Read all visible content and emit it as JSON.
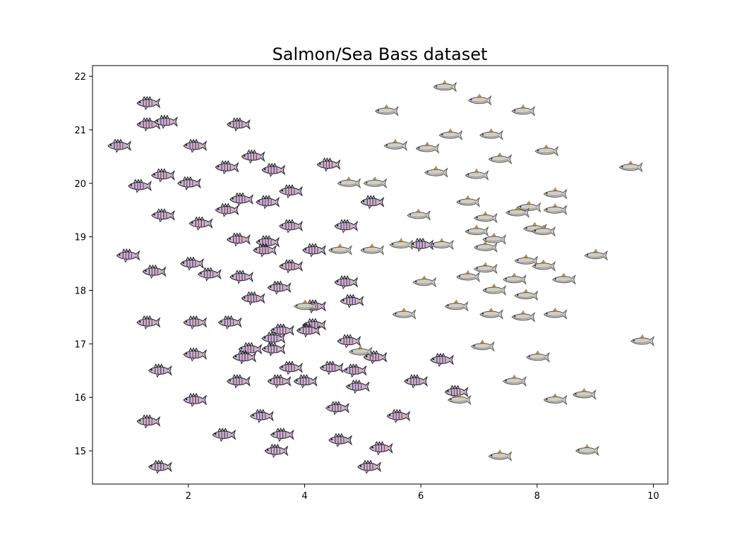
{
  "chart_data": {
    "type": "scatter",
    "title": "Salmon/Sea Bass dataset",
    "xlabel": "",
    "ylabel": "",
    "xlim": [
      0.35,
      10.25
    ],
    "ylim": [
      14.38,
      22.2
    ],
    "xticks": [
      "2",
      "4",
      "6",
      "8",
      "10"
    ],
    "yticks": [
      "15",
      "16",
      "17",
      "18",
      "19",
      "20",
      "21",
      "22"
    ],
    "grid": false,
    "marker_style": "fish pictograms",
    "series": [
      {
        "marker": "sea-bass",
        "color": "#6a5a78",
        "points": [
          [
            1.3,
            21.5
          ],
          [
            1.3,
            21.1
          ],
          [
            1.6,
            21.15
          ],
          [
            2.85,
            21.1
          ],
          [
            0.8,
            20.7
          ],
          [
            2.1,
            20.7
          ],
          [
            3.1,
            20.5
          ],
          [
            2.65,
            20.3
          ],
          [
            3.45,
            20.25
          ],
          [
            4.4,
            20.35
          ],
          [
            1.55,
            20.15
          ],
          [
            1.15,
            19.95
          ],
          [
            2.0,
            20.0
          ],
          [
            2.9,
            19.7
          ],
          [
            3.75,
            19.85
          ],
          [
            3.35,
            19.65
          ],
          [
            5.15,
            19.65
          ],
          [
            2.65,
            19.5
          ],
          [
            1.55,
            19.4
          ],
          [
            2.2,
            19.25
          ],
          [
            3.75,
            19.2
          ],
          [
            4.7,
            19.2
          ],
          [
            2.85,
            18.95
          ],
          [
            3.35,
            18.9
          ],
          [
            0.95,
            18.65
          ],
          [
            3.3,
            18.75
          ],
          [
            4.15,
            18.75
          ],
          [
            6.0,
            18.85
          ],
          [
            2.05,
            18.5
          ],
          [
            3.75,
            18.45
          ],
          [
            1.4,
            18.35
          ],
          [
            2.35,
            18.3
          ],
          [
            2.9,
            18.25
          ],
          [
            4.7,
            18.15
          ],
          [
            3.55,
            18.05
          ],
          [
            3.1,
            17.85
          ],
          [
            4.8,
            17.8
          ],
          [
            4.15,
            17.7
          ],
          [
            1.3,
            17.4
          ],
          [
            2.1,
            17.4
          ],
          [
            2.7,
            17.4
          ],
          [
            4.15,
            17.35
          ],
          [
            3.6,
            17.25
          ],
          [
            4.05,
            17.25
          ],
          [
            3.45,
            17.1
          ],
          [
            4.75,
            17.05
          ],
          [
            3.05,
            16.9
          ],
          [
            3.45,
            16.9
          ],
          [
            2.1,
            16.8
          ],
          [
            2.95,
            16.75
          ],
          [
            5.2,
            16.75
          ],
          [
            6.35,
            16.7
          ],
          [
            1.5,
            16.5
          ],
          [
            3.75,
            16.55
          ],
          [
            4.45,
            16.55
          ],
          [
            4.85,
            16.5
          ],
          [
            2.85,
            16.3
          ],
          [
            3.55,
            16.3
          ],
          [
            4.0,
            16.3
          ],
          [
            4.9,
            16.2
          ],
          [
            5.9,
            16.3
          ],
          [
            6.6,
            16.1
          ],
          [
            2.1,
            15.95
          ],
          [
            4.55,
            15.8
          ],
          [
            3.25,
            15.65
          ],
          [
            5.6,
            15.65
          ],
          [
            1.3,
            15.55
          ],
          [
            2.6,
            15.3
          ],
          [
            3.6,
            15.3
          ],
          [
            4.6,
            15.2
          ],
          [
            3.5,
            15.0
          ],
          [
            5.3,
            15.05
          ],
          [
            1.5,
            14.7
          ],
          [
            5.1,
            14.7
          ]
        ]
      },
      {
        "marker": "salmon",
        "color": "#9a9a92",
        "points": [
          [
            6.4,
            21.8
          ],
          [
            7.0,
            21.55
          ],
          [
            5.4,
            21.35
          ],
          [
            7.75,
            21.35
          ],
          [
            6.5,
            20.9
          ],
          [
            7.2,
            20.9
          ],
          [
            5.55,
            20.7
          ],
          [
            6.1,
            20.65
          ],
          [
            8.15,
            20.6
          ],
          [
            7.35,
            20.45
          ],
          [
            9.6,
            20.3
          ],
          [
            6.25,
            20.2
          ],
          [
            6.95,
            20.15
          ],
          [
            4.75,
            20.0
          ],
          [
            5.2,
            20.0
          ],
          [
            8.3,
            19.8
          ],
          [
            6.8,
            19.65
          ],
          [
            7.85,
            19.55
          ],
          [
            8.3,
            19.5
          ],
          [
            5.95,
            19.4
          ],
          [
            7.65,
            19.45
          ],
          [
            7.1,
            19.35
          ],
          [
            7.95,
            19.15
          ],
          [
            8.1,
            19.1
          ],
          [
            6.95,
            19.1
          ],
          [
            7.25,
            18.95
          ],
          [
            5.65,
            18.85
          ],
          [
            6.35,
            18.85
          ],
          [
            7.1,
            18.8
          ],
          [
            4.6,
            18.75
          ],
          [
            5.15,
            18.75
          ],
          [
            9.0,
            18.65
          ],
          [
            7.8,
            18.55
          ],
          [
            8.1,
            18.45
          ],
          [
            7.1,
            18.4
          ],
          [
            6.8,
            18.25
          ],
          [
            7.6,
            18.2
          ],
          [
            8.45,
            18.2
          ],
          [
            6.05,
            18.15
          ],
          [
            7.25,
            18.0
          ],
          [
            7.8,
            17.9
          ],
          [
            6.6,
            17.7
          ],
          [
            4.0,
            17.7
          ],
          [
            5.7,
            17.55
          ],
          [
            7.2,
            17.55
          ],
          [
            7.75,
            17.5
          ],
          [
            8.3,
            17.55
          ],
          [
            9.8,
            17.05
          ],
          [
            7.05,
            16.95
          ],
          [
            4.95,
            16.85
          ],
          [
            8.0,
            16.75
          ],
          [
            7.6,
            16.3
          ],
          [
            6.65,
            15.95
          ],
          [
            8.3,
            15.95
          ],
          [
            8.8,
            16.05
          ],
          [
            7.35,
            14.9
          ],
          [
            8.85,
            15.0
          ]
        ]
      }
    ]
  }
}
